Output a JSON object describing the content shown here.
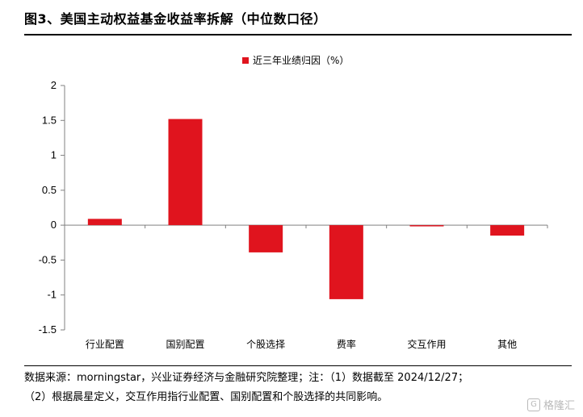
{
  "header": {
    "title": "图3、美国主动权益基金收益率拆解（中位数口径）"
  },
  "chart_data": {
    "type": "bar",
    "categories": [
      "行业配置",
      "国别配置",
      "个股选择",
      "费率",
      "交互作用",
      "其他"
    ],
    "series": [
      {
        "name": "近三年业绩归因（%）",
        "values": [
          0.09,
          1.52,
          -0.39,
          -1.06,
          -0.01,
          -0.15
        ],
        "color": "#e0141e"
      }
    ],
    "ylim": [
      -1.5,
      2
    ],
    "yticks": [
      "2",
      "1.5",
      "1",
      "0.5",
      "0",
      "-0.5",
      "-1",
      "-1.5"
    ],
    "ytick_values": [
      2,
      1.5,
      1,
      0.5,
      0,
      -0.5,
      -1,
      -1.5
    ],
    "legend_position": "top-center",
    "grid": false
  },
  "footer": {
    "source_line1": "数据来源：morningstar，兴业证券经济与金融研究院整理；注：（1）数据截至 2024/12/27；",
    "source_line2": "（2）根据晨星定义，交互作用指行业配置、国别配置和个股选择的共同影响。",
    "watermark": "格隆汇"
  }
}
